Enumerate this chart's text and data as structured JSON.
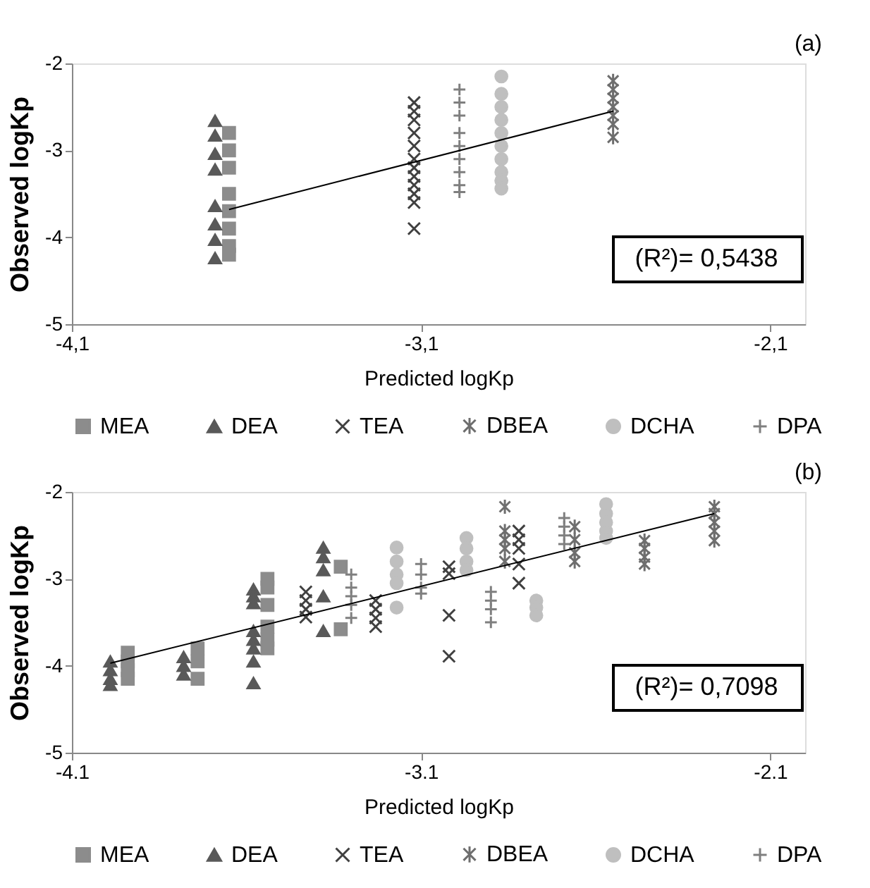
{
  "chart_data": [
    {
      "type": "scatter",
      "xlabel": "Predicted logKp",
      "ylabel": "Observed logKp",
      "xlim": [
        -4.1,
        -2.0
      ],
      "ylim": [
        -5,
        -2
      ],
      "xticks": [
        {
          "value": -4.1,
          "label": "-4,1"
        },
        {
          "value": -3.1,
          "label": "-3,1"
        },
        {
          "value": -2.1,
          "label": "-2,1"
        }
      ],
      "yticks": [
        -5,
        -4,
        -3,
        -2
      ],
      "grid": false,
      "legend": "bottom",
      "annotations": [
        "(a)",
        "(R²)= 0,5438"
      ],
      "series": [
        {
          "name": "MEA",
          "color": "#8c8c8c",
          "marker": "square",
          "x": [
            -3.65,
            -3.65,
            -3.65,
            -3.65,
            -3.65,
            -3.65,
            -3.65,
            -3.65
          ],
          "values": [
            -2.8,
            -3.0,
            -3.2,
            -3.5,
            -3.7,
            -3.9,
            -4.1,
            -4.2
          ]
        },
        {
          "name": "DEA",
          "color": "#595959",
          "marker": "triangle",
          "x": [
            -3.69,
            -3.69,
            -3.69,
            -3.69,
            -3.69,
            -3.69,
            -3.69,
            -3.69
          ],
          "values": [
            -2.66,
            -2.83,
            -3.04,
            -3.22,
            -3.64,
            -3.85,
            -4.03,
            -4.24
          ]
        },
        {
          "name": "TEA",
          "color": "#404040",
          "marker": "cross",
          "x": [
            -3.12,
            -3.12,
            -3.12,
            -3.12,
            -3.12,
            -3.12,
            -3.12,
            -3.12,
            -3.12,
            -3.12,
            -3.12,
            -3.12
          ],
          "values": [
            -2.45,
            -2.55,
            -2.65,
            -2.8,
            -2.95,
            -3.1,
            -3.2,
            -3.3,
            -3.4,
            -3.5,
            -3.6,
            -3.9
          ]
        },
        {
          "name": "DBEA",
          "color": "#6e6e6e",
          "x": [
            -2.55,
            -2.55,
            -2.55,
            -2.55,
            -2.55,
            -2.55,
            -2.55
          ],
          "values": [
            -2.2,
            -2.3,
            -2.4,
            -2.5,
            -2.6,
            -2.7,
            -2.85
          ]
        },
        {
          "name": "DCHA",
          "color": "#bfbfbf",
          "marker": "circle",
          "x": [
            -2.87,
            -2.87,
            -2.87,
            -2.87,
            -2.87,
            -2.87,
            -2.87,
            -2.87,
            -2.87,
            -2.87
          ],
          "values": [
            -2.15,
            -2.35,
            -2.5,
            -2.65,
            -2.8,
            -2.95,
            -3.1,
            -3.25,
            -3.35,
            -3.44
          ]
        },
        {
          "name": "DPA",
          "color": "#7f7f7f",
          "marker": "plus",
          "x": [
            -2.99,
            -2.99,
            -2.99,
            -2.99,
            -2.99,
            -2.99,
            -2.99,
            -2.99,
            -2.99
          ],
          "values": [
            -2.3,
            -2.45,
            -2.6,
            -2.8,
            -2.95,
            -3.1,
            -3.25,
            -3.4,
            -3.48
          ]
        },
        {
          "type": "line",
          "color": "#000000",
          "x": [
            -3.65,
            -2.55
          ],
          "values": [
            -3.68,
            -2.55
          ]
        }
      ]
    },
    {
      "type": "scatter",
      "xlabel": "Predicted logKp",
      "ylabel": "Observed logKp",
      "xlim": [
        -4.1,
        -2.0
      ],
      "ylim": [
        -5,
        -2
      ],
      "xticks": [
        -4.1,
        -3.1,
        -2.1
      ],
      "yticks": [
        -5,
        -4,
        -3,
        -2
      ],
      "grid": false,
      "legend": "bottom",
      "annotations": [
        "(b)",
        "(R²)= 0,7098"
      ],
      "series": [
        {
          "name": "MEA",
          "color": "#8c8c8c",
          "marker": "square",
          "x": [
            -3.94,
            -3.94,
            -3.94,
            -3.94,
            -3.74,
            -3.74,
            -3.74,
            -3.54,
            -3.54,
            -3.54,
            -3.54,
            -3.54,
            -3.54,
            -3.33,
            -3.33
          ],
          "values": [
            -3.85,
            -3.95,
            -4.05,
            -4.15,
            -3.8,
            -3.95,
            -4.15,
            -3.0,
            -3.1,
            -3.3,
            -3.55,
            -3.7,
            -3.8,
            -2.86,
            -3.58
          ]
        },
        {
          "name": "DEA",
          "color": "#595959",
          "marker": "triangle",
          "x": [
            -3.99,
            -3.99,
            -3.99,
            -3.99,
            -3.78,
            -3.78,
            -3.78,
            -3.58,
            -3.58,
            -3.58,
            -3.58,
            -3.58,
            -3.58,
            -3.58,
            -3.58,
            -3.38,
            -3.38,
            -3.38,
            -3.38,
            -3.38
          ],
          "values": [
            -3.95,
            -4.05,
            -4.15,
            -4.22,
            -3.9,
            -4.0,
            -4.1,
            -3.12,
            -3.2,
            -3.28,
            -3.6,
            -3.7,
            -3.8,
            -3.95,
            -4.2,
            -2.64,
            -2.75,
            -2.9,
            -3.2,
            -3.6
          ]
        },
        {
          "name": "TEA",
          "color": "#404040",
          "marker": "cross",
          "x": [
            -3.43,
            -3.43,
            -3.43,
            -3.43,
            -3.23,
            -3.23,
            -3.23,
            -3.23,
            -3.02,
            -3.02,
            -3.02,
            -3.02,
            -2.82,
            -2.82,
            -2.82,
            -2.82,
            -2.82
          ],
          "values": [
            -3.15,
            -3.25,
            -3.35,
            -3.44,
            -3.25,
            -3.35,
            -3.45,
            -3.55,
            -2.86,
            -2.94,
            -3.42,
            -3.89,
            -2.45,
            -2.55,
            -2.65,
            -2.83,
            -3.05
          ]
        },
        {
          "name": "DBEA",
          "color": "#6e6e6e",
          "x": [
            -2.86,
            -2.86,
            -2.86,
            -2.86,
            -2.86,
            -2.66,
            -2.66,
            -2.66,
            -2.66,
            -2.46,
            -2.46,
            -2.46,
            -2.46,
            -2.26,
            -2.26,
            -2.26,
            -2.26,
            -2.26
          ],
          "values": [
            -2.17,
            -2.45,
            -2.55,
            -2.65,
            -2.8,
            -2.4,
            -2.55,
            -2.7,
            -2.8,
            -2.56,
            -2.65,
            -2.75,
            -2.83,
            -2.17,
            -2.25,
            -2.35,
            -2.45,
            -2.56
          ]
        },
        {
          "name": "DCHA",
          "color": "#bfbfbf",
          "marker": "circle",
          "x": [
            -3.17,
            -3.17,
            -3.17,
            -3.17,
            -3.17,
            -2.97,
            -2.97,
            -2.97,
            -2.97,
            -2.77,
            -2.77,
            -2.77,
            -2.57,
            -2.57,
            -2.57,
            -2.57,
            -2.57
          ],
          "values": [
            -2.64,
            -2.8,
            -2.95,
            -3.05,
            -3.33,
            -2.53,
            -2.65,
            -2.8,
            -2.9,
            -3.25,
            -3.33,
            -3.42,
            -2.14,
            -2.25,
            -2.35,
            -2.45,
            -2.53
          ]
        },
        {
          "name": "DPA",
          "color": "#7f7f7f",
          "marker": "plus",
          "x": [
            -3.3,
            -3.3,
            -3.3,
            -3.3,
            -3.3,
            -3.1,
            -3.1,
            -3.1,
            -3.1,
            -2.9,
            -2.9,
            -2.9,
            -2.9,
            -2.69,
            -2.69,
            -2.69,
            -2.69
          ],
          "values": [
            -2.95,
            -3.1,
            -3.2,
            -3.3,
            -3.45,
            -2.83,
            -2.95,
            -3.1,
            -3.17,
            -3.15,
            -3.25,
            -3.35,
            -3.5,
            -2.3,
            -2.4,
            -2.5,
            -2.6
          ]
        },
        {
          "type": "line",
          "color": "#000000",
          "x": [
            -3.99,
            -2.26
          ],
          "values": [
            -3.97,
            -2.25
          ]
        }
      ]
    }
  ]
}
